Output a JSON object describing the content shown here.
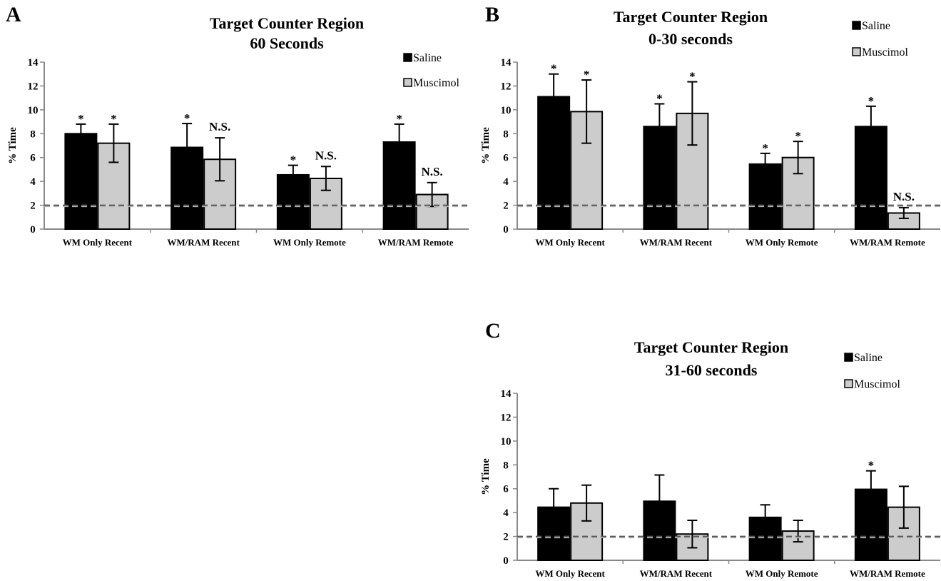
{
  "colors": {
    "saline": "#000000",
    "muscimol": "#cccccc",
    "axis": "#888888",
    "reference": "#555555"
  },
  "chart_data": [
    {
      "panel": "A",
      "type": "bar",
      "title": [
        "Target Counter Region",
        "60 Seconds"
      ],
      "ylabel": "% Time",
      "ylim": [
        0,
        14
      ],
      "yticks": [
        0,
        2,
        4,
        6,
        8,
        10,
        12,
        14
      ],
      "reference_line": 2,
      "legend": [
        "Saline",
        "Muscimol"
      ],
      "categories": [
        "WM Only Recent",
        "WM/RAM Recent",
        "WM Only Remote",
        "WM/RAM Remote"
      ],
      "series": [
        {
          "name": "Saline",
          "values": [
            8.0,
            6.85,
            4.55,
            7.3
          ],
          "errors": [
            0.8,
            2.0,
            0.8,
            1.5
          ],
          "annotations": [
            "*",
            "*",
            "*",
            "*"
          ]
        },
        {
          "name": "Muscimol",
          "values": [
            7.2,
            5.85,
            4.25,
            2.9
          ],
          "errors": [
            1.6,
            1.8,
            1.0,
            1.0
          ],
          "annotations": [
            "*",
            "N.S.",
            "N.S.",
            "N.S."
          ]
        }
      ]
    },
    {
      "panel": "B",
      "type": "bar",
      "title": [
        "Target Counter Region",
        "0-30 seconds"
      ],
      "ylabel": "% Time",
      "ylim": [
        0,
        14
      ],
      "yticks": [
        0,
        2,
        4,
        6,
        8,
        10,
        12,
        14
      ],
      "reference_line": 2,
      "legend": [
        "Saline",
        "Muscimol"
      ],
      "categories": [
        "WM Only Recent",
        "WM/RAM Recent",
        "WM Only Remote",
        "WM/RAM Remote"
      ],
      "series": [
        {
          "name": "Saline",
          "values": [
            11.1,
            8.6,
            5.45,
            8.6
          ],
          "errors": [
            1.9,
            1.9,
            0.9,
            1.7
          ],
          "annotations": [
            "*",
            "*",
            "*",
            "*"
          ]
        },
        {
          "name": "Muscimol",
          "values": [
            9.85,
            9.7,
            6.0,
            1.35
          ],
          "errors": [
            2.65,
            2.65,
            1.35,
            0.45
          ],
          "annotations": [
            "*",
            "*",
            "*",
            "N.S."
          ]
        }
      ]
    },
    {
      "panel": "C",
      "type": "bar",
      "title": [
        "Target Counter Region",
        "31-60 seconds"
      ],
      "ylabel": "% Time",
      "ylim": [
        0,
        14
      ],
      "yticks": [
        0,
        2,
        4,
        6,
        8,
        10,
        12,
        14
      ],
      "reference_line": 2,
      "legend": [
        "Saline",
        "Muscimol"
      ],
      "categories": [
        "WM Only Recent",
        "WM/RAM Recent",
        "WM Only Remote",
        "WM/RAM Remote"
      ],
      "series": [
        {
          "name": "Saline",
          "values": [
            4.45,
            4.95,
            3.6,
            5.95
          ],
          "errors": [
            1.55,
            2.2,
            1.05,
            1.55
          ],
          "annotations": [
            "",
            "",
            "",
            "*"
          ]
        },
        {
          "name": "Muscimol",
          "values": [
            4.8,
            2.2,
            2.45,
            4.45
          ],
          "errors": [
            1.5,
            1.15,
            0.9,
            1.75
          ],
          "annotations": [
            "",
            "",
            "",
            ""
          ]
        }
      ]
    }
  ]
}
